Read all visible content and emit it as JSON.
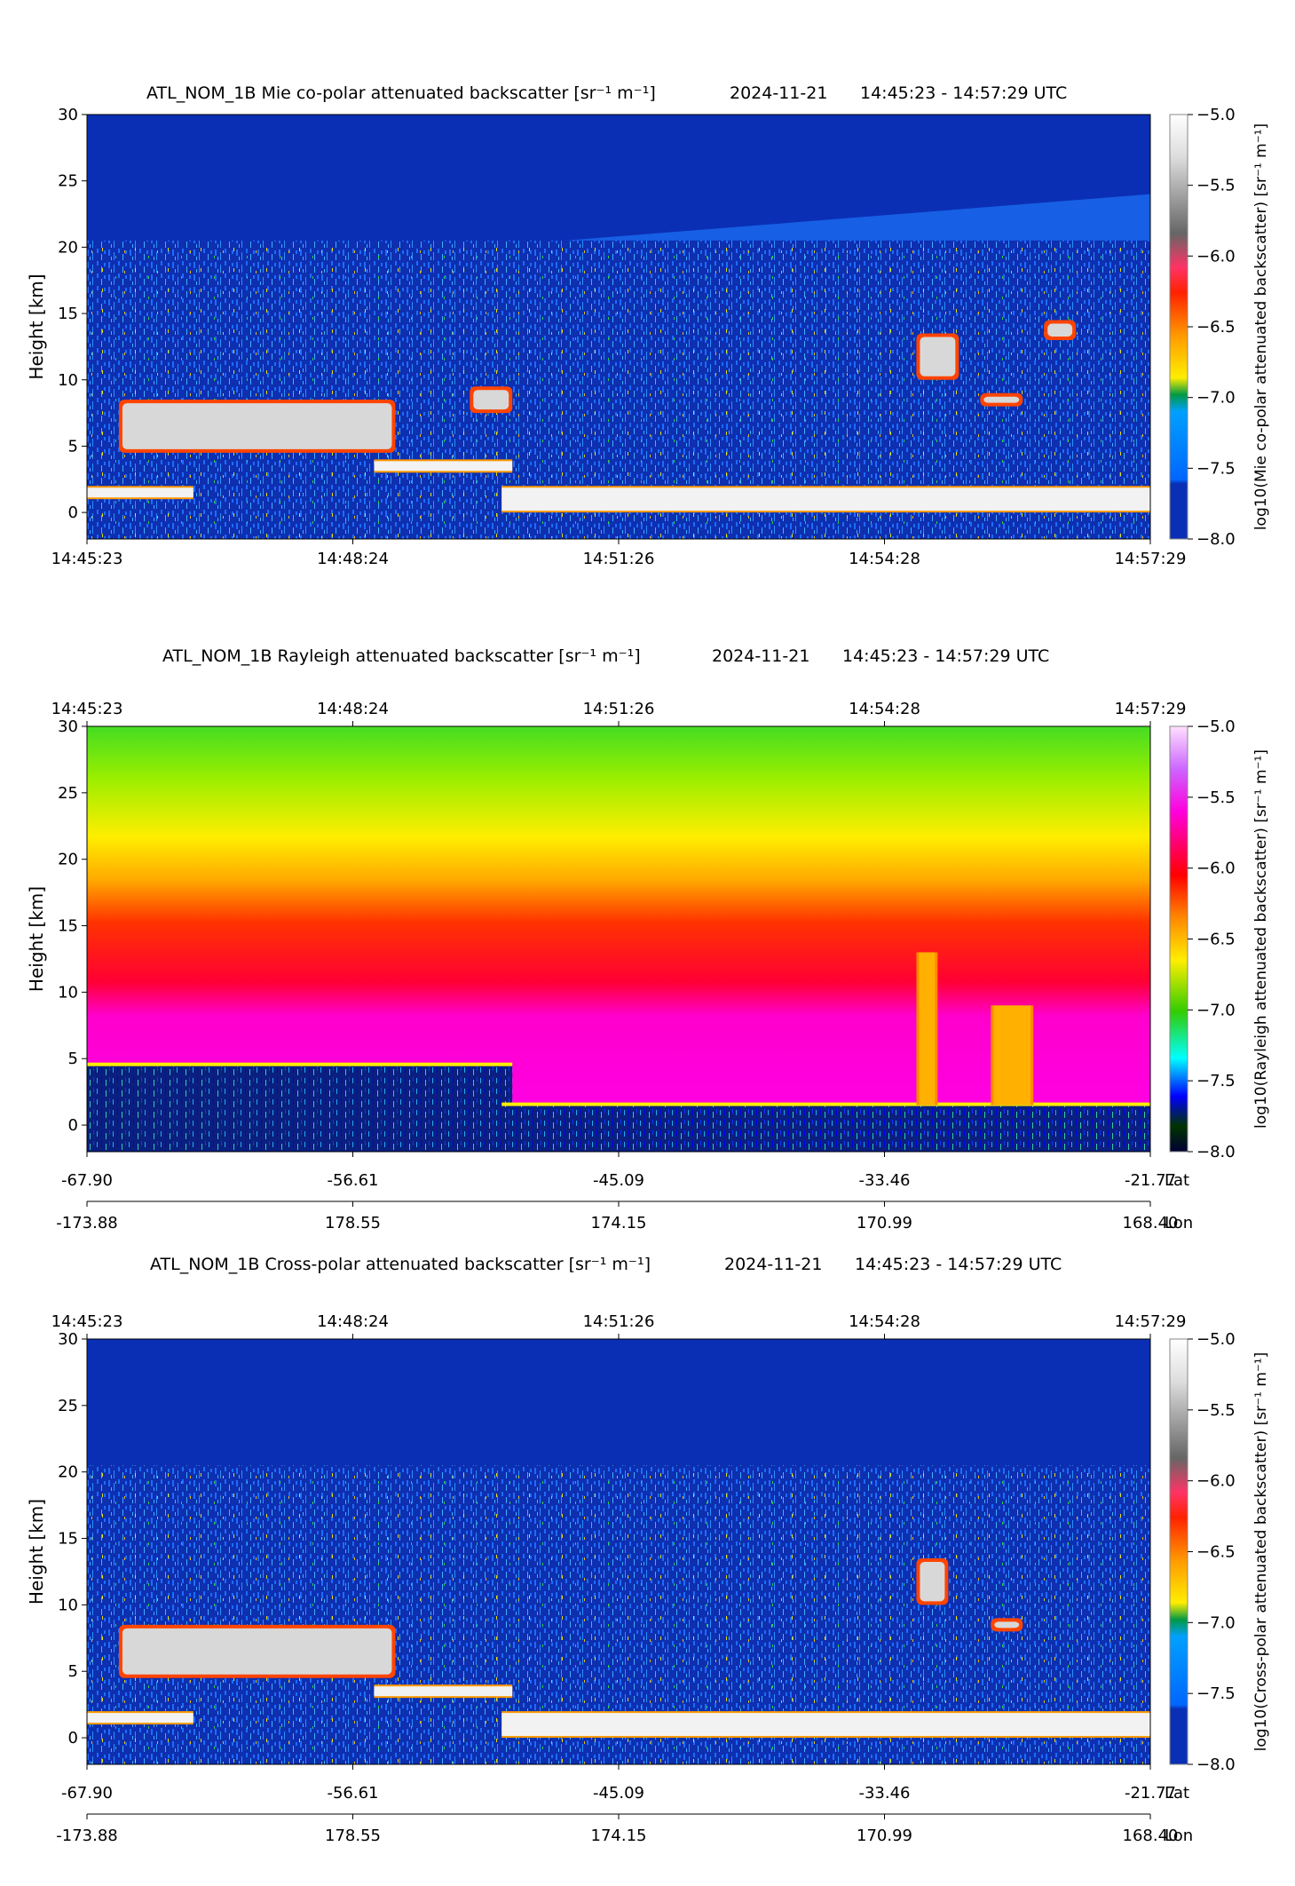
{
  "date": "2024-11-21",
  "time_range": "14:45:23 - 14:57:29 UTC",
  "time_ticks": [
    "14:45:23",
    "14:48:24",
    "14:51:26",
    "14:54:28",
    "14:57:29"
  ],
  "lat_ticks": [
    "-67.90",
    "-56.61",
    "-45.09",
    "-33.46",
    "-21.77"
  ],
  "lon_ticks": [
    "-173.88",
    "178.55",
    "174.15",
    "170.99",
    "168.40"
  ],
  "lat_label": "Lat",
  "lon_label": "Lon",
  "chart_data": [
    {
      "type": "heatmap",
      "title": "ATL_NOM_1B Mie co-polar attenuated backscatter [sr⁻¹ m⁻¹]",
      "ylabel": "Height [km]",
      "colorbar_label": "log10(Mie co-polar attenuated backscatter) [sr⁻¹ m⁻¹]",
      "ylim": [
        -2,
        30
      ],
      "yticks": [
        0,
        5,
        10,
        15,
        20,
        25,
        30
      ],
      "clim": [
        -8.0,
        -5.0
      ],
      "cticks": [
        "−5.0",
        "−5.5",
        "−6.0",
        "−6.5",
        "−7.0",
        "−7.5",
        "−8.0"
      ],
      "colormap": "calipso",
      "features": [
        {
          "kind": "cloud",
          "t": [
            0.03,
            0.29
          ],
          "h": [
            4.5,
            8.5
          ]
        },
        {
          "kind": "cloud",
          "t": [
            0.36,
            0.4
          ],
          "h": [
            7.5,
            9.5
          ]
        },
        {
          "kind": "cloud",
          "t": [
            0.78,
            0.82
          ],
          "h": [
            10.0,
            13.5
          ]
        },
        {
          "kind": "cloud",
          "t": [
            0.84,
            0.88
          ],
          "h": [
            8.0,
            9.0
          ]
        },
        {
          "kind": "cloud",
          "t": [
            0.9,
            0.93
          ],
          "h": [
            13.0,
            14.5
          ]
        },
        {
          "kind": "low_cloud",
          "t": [
            0.0,
            0.1
          ],
          "h": [
            1.0,
            2.0
          ]
        },
        {
          "kind": "low_cloud",
          "t": [
            0.27,
            0.4
          ],
          "h": [
            3.0,
            4.0
          ]
        },
        {
          "kind": "low_cloud",
          "t": [
            0.39,
            1.0
          ],
          "h": [
            0.0,
            2.0
          ]
        }
      ]
    },
    {
      "type": "heatmap",
      "title": "ATL_NOM_1B Rayleigh attenuated backscatter [sr⁻¹ m⁻¹]",
      "ylabel": "Height [km]",
      "colorbar_label": "log10(Rayleigh attenuated backscatter) [sr⁻¹ m⁻¹]",
      "ylim": [
        -2,
        30
      ],
      "yticks": [
        0,
        5,
        10,
        15,
        20,
        25,
        30
      ],
      "clim": [
        -8.0,
        -5.0
      ],
      "cticks": [
        "−5.0",
        "−5.5",
        "−6.0",
        "−6.5",
        "−7.0",
        "−7.5",
        "−8.0"
      ],
      "colormap": "rainbow",
      "features": [
        {
          "kind": "blocked",
          "t": [
            0.0,
            0.4
          ],
          "h": [
            -2,
            4.5
          ]
        },
        {
          "kind": "blocked",
          "t": [
            0.39,
            1.0
          ],
          "h": [
            -2,
            1.5
          ]
        },
        {
          "kind": "column",
          "t": [
            0.78,
            0.8
          ],
          "h": [
            1.5,
            13.0
          ]
        },
        {
          "kind": "column",
          "t": [
            0.85,
            0.89
          ],
          "h": [
            1.5,
            9.0
          ]
        }
      ]
    },
    {
      "type": "heatmap",
      "title": "ATL_NOM_1B Cross-polar attenuated backscatter [sr⁻¹ m⁻¹]",
      "ylabel": "Height [km]",
      "colorbar_label": "log10(Cross-polar attenuated backscatter) [sr⁻¹ m⁻¹]",
      "ylim": [
        -2,
        30
      ],
      "yticks": [
        0,
        5,
        10,
        15,
        20,
        25,
        30
      ],
      "clim": [
        -8.0,
        -5.0
      ],
      "cticks": [
        "−5.0",
        "−5.5",
        "−6.0",
        "−6.5",
        "−7.0",
        "−7.5",
        "−8.0"
      ],
      "colormap": "calipso",
      "features": [
        {
          "kind": "cloud",
          "t": [
            0.03,
            0.29
          ],
          "h": [
            4.5,
            8.5
          ]
        },
        {
          "kind": "cloud",
          "t": [
            0.78,
            0.81
          ],
          "h": [
            10.0,
            13.5
          ]
        },
        {
          "kind": "cloud",
          "t": [
            0.85,
            0.88
          ],
          "h": [
            8.0,
            9.0
          ]
        },
        {
          "kind": "low_cloud",
          "t": [
            0.0,
            0.1
          ],
          "h": [
            1.0,
            2.0
          ]
        },
        {
          "kind": "low_cloud",
          "t": [
            0.27,
            0.4
          ],
          "h": [
            3.0,
            4.0
          ]
        },
        {
          "kind": "low_cloud",
          "t": [
            0.39,
            1.0
          ],
          "h": [
            0.0,
            2.0
          ]
        }
      ]
    }
  ]
}
